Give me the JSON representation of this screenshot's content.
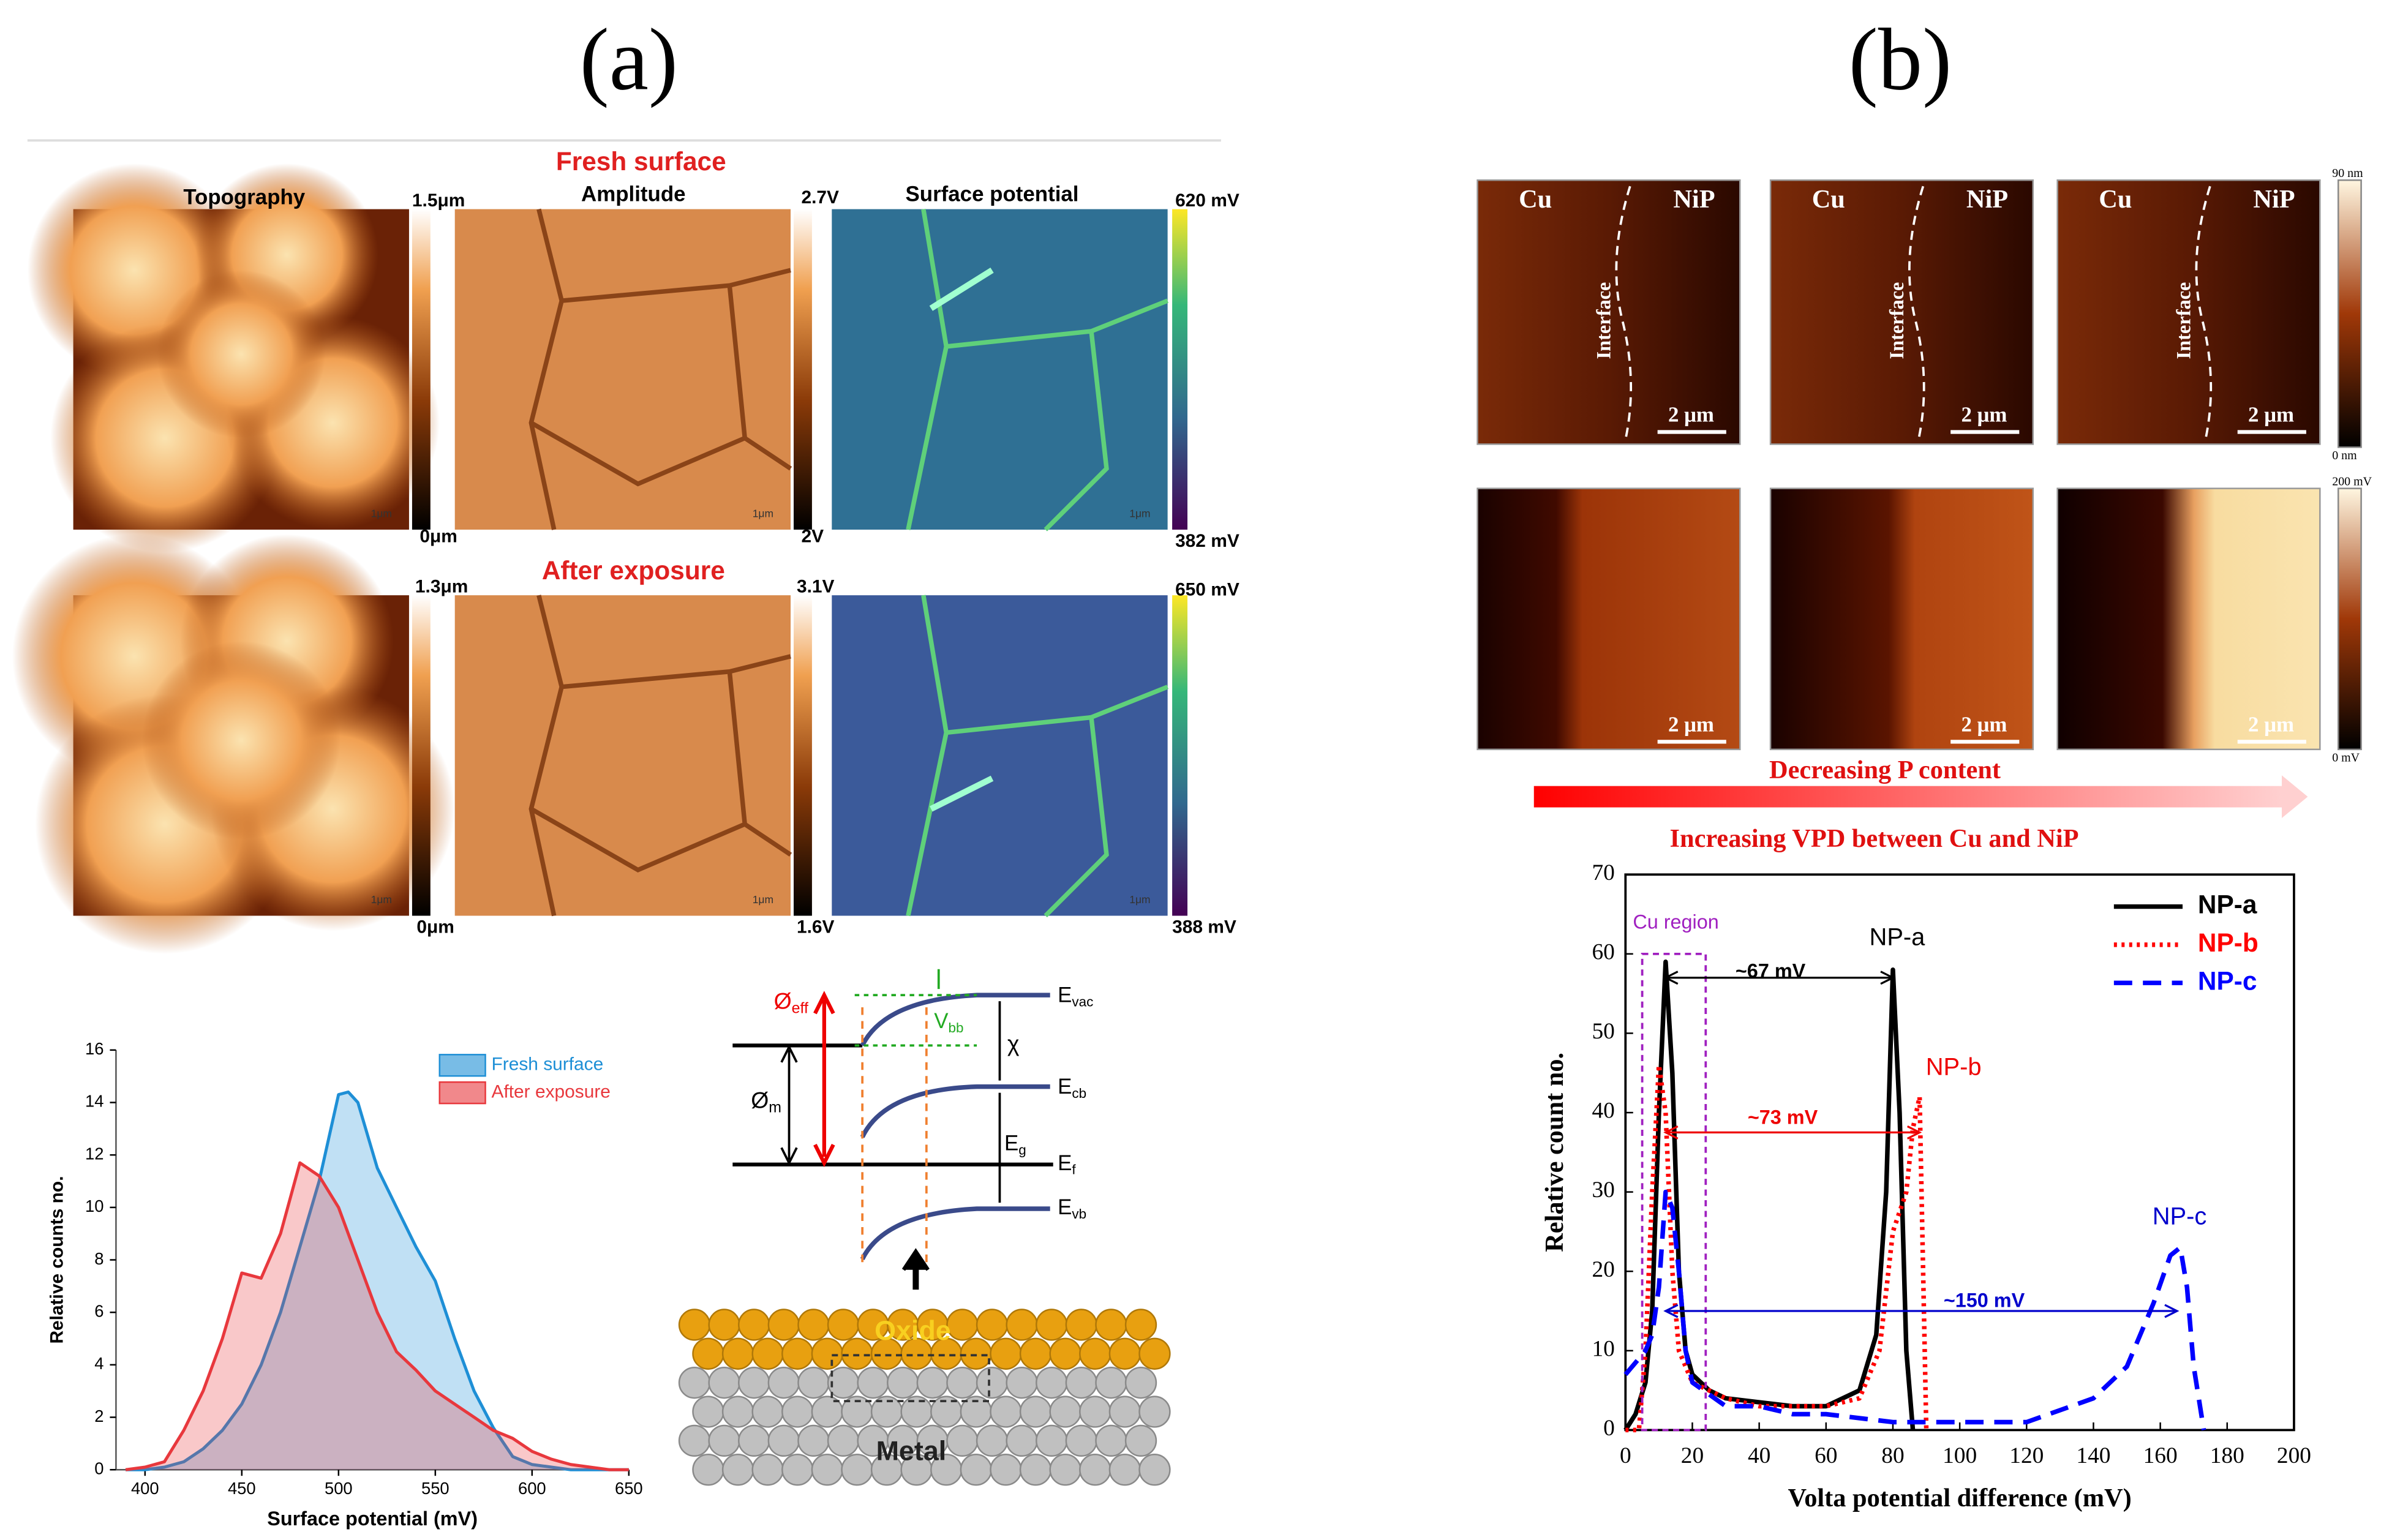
{
  "panel_labels": [
    "(a)",
    "(b)"
  ],
  "panel_a": {
    "row_titles": [
      "Fresh surface",
      "After exposure"
    ],
    "column_titles": [
      "Topography",
      "Amplitude",
      "Surface potential"
    ],
    "scale_labels": [
      [
        "1.5μm",
        "0μm"
      ],
      [
        "2.7V",
        "2V"
      ],
      [
        "620 mV",
        "382 mV"
      ],
      [
        "1.3μm",
        "0μm"
      ],
      [
        "3.1V",
        "1.6V"
      ],
      [
        "650 mV",
        "388 mV"
      ]
    ],
    "scale_bar": "1μm",
    "band_diagram": {
      "levels": [
        {
          "base": "E",
          "sub": "vac"
        },
        {
          "base": "E",
          "sub": "cb"
        },
        {
          "base": "E",
          "sub": "f"
        },
        {
          "base": "E",
          "sub": "vb"
        }
      ],
      "phi_eff": {
        "base": "Ø",
        "sub": "eff"
      },
      "phi_m": {
        "base": "Ø",
        "sub": "m"
      },
      "v_bb": {
        "base": "V",
        "sub": "bb"
      },
      "chi": "χ",
      "gap": {
        "base": "E",
        "sub": "g"
      },
      "oxide": "Oxide",
      "metal": "Metal"
    }
  },
  "panel_b": {
    "map_labels": {
      "left": "Cu",
      "right": "NiP",
      "interface": "Interface",
      "scale_bar": "2 μm"
    },
    "colorbars": [
      [
        "90 nm",
        "0 nm"
      ],
      [
        "200 mV",
        "0 mV"
      ]
    ],
    "arrow_labels": [
      "Decreasing P content",
      "Increasing VPD between Cu and NiP"
    ]
  },
  "chart_data": [
    {
      "type": "area",
      "xlabel": "Surface potential (mV)",
      "ylabel": "Relative counts no.",
      "xlim": [
        385,
        650
      ],
      "xticks": [
        400,
        450,
        500,
        550,
        600,
        650
      ],
      "ylim": [
        0,
        16
      ],
      "yticks": [
        0,
        2,
        4,
        6,
        8,
        10,
        12,
        14,
        16
      ],
      "legend": "upper right",
      "series": [
        {
          "name": "Fresh surface",
          "color": "#1e8fd6",
          "x": [
            390,
            400,
            410,
            420,
            430,
            440,
            450,
            460,
            470,
            480,
            490,
            500,
            505,
            510,
            520,
            530,
            540,
            550,
            560,
            570,
            580,
            590,
            600,
            610,
            620,
            630,
            640,
            650
          ],
          "values": [
            0,
            0,
            0.1,
            0.3,
            0.8,
            1.5,
            2.5,
            4,
            6,
            8.5,
            11,
            14.3,
            14.4,
            14,
            11.5,
            10,
            8.5,
            7.2,
            5,
            3,
            1.6,
            0.5,
            0.2,
            0.1,
            0,
            0,
            0,
            0
          ]
        },
        {
          "name": "After exposure",
          "color": "#e8383d",
          "x": [
            390,
            400,
            410,
            420,
            430,
            440,
            450,
            460,
            470,
            480,
            490,
            500,
            510,
            520,
            530,
            540,
            550,
            560,
            570,
            580,
            590,
            600,
            610,
            620,
            630,
            640,
            650
          ],
          "values": [
            0,
            0.1,
            0.3,
            1.5,
            3,
            5,
            7.5,
            7.3,
            9,
            11.7,
            11.2,
            10,
            8,
            6,
            4.5,
            3.8,
            3,
            2.5,
            2,
            1.5,
            1.2,
            0.7,
            0.4,
            0.2,
            0.1,
            0,
            0
          ]
        }
      ]
    },
    {
      "type": "line",
      "xlabel": "Volta potential difference (mV)",
      "ylabel": "Relative count no.",
      "xlim": [
        0,
        200
      ],
      "xticks": [
        0,
        20,
        40,
        60,
        80,
        100,
        120,
        140,
        160,
        180,
        200
      ],
      "ylim": [
        0,
        70
      ],
      "yticks": [
        0,
        10,
        20,
        30,
        40,
        50,
        60,
        70
      ],
      "legend": "upper right",
      "annotations": [
        "Cu region",
        "NP-a",
        "NP-b",
        "NP-c",
        "~67 mV",
        "~73 mV",
        "~150 mV"
      ],
      "series": [
        {
          "name": "NP-a",
          "color": "#000000",
          "line_style": "solid",
          "x": [
            0,
            3,
            6,
            8,
            10,
            12,
            14,
            16,
            18,
            20,
            25,
            30,
            40,
            50,
            60,
            70,
            75,
            78,
            80,
            82,
            84,
            86
          ],
          "values": [
            0,
            2,
            6,
            15,
            40,
            59,
            45,
            20,
            10,
            7,
            5,
            4,
            3.5,
            3,
            3,
            5,
            12,
            30,
            58,
            40,
            10,
            0
          ]
        },
        {
          "name": "NP-b",
          "color": "#ff0000",
          "line_style": "dotted",
          "x": [
            0,
            4,
            6,
            8,
            10,
            12,
            14,
            16,
            20,
            30,
            40,
            50,
            60,
            70,
            76,
            80,
            84,
            86,
            88,
            90
          ],
          "values": [
            0,
            0,
            10,
            30,
            46,
            40,
            20,
            10,
            6,
            4,
            3,
            3,
            3,
            4,
            10,
            25,
            30,
            38,
            42,
            0
          ]
        },
        {
          "name": "NP-c",
          "color": "#0000ff",
          "line_style": "dashed",
          "x": [
            0,
            4,
            6,
            8,
            10,
            12,
            14,
            16,
            18,
            20,
            30,
            40,
            50,
            60,
            80,
            90,
            100,
            120,
            140,
            150,
            158,
            163,
            166,
            168,
            170,
            173
          ],
          "values": [
            7,
            9,
            10,
            12,
            18,
            30,
            28,
            20,
            10,
            6,
            3,
            3,
            2,
            2,
            1,
            1,
            1,
            1,
            4,
            8,
            16,
            22,
            23,
            18,
            8,
            0
          ]
        }
      ]
    }
  ]
}
